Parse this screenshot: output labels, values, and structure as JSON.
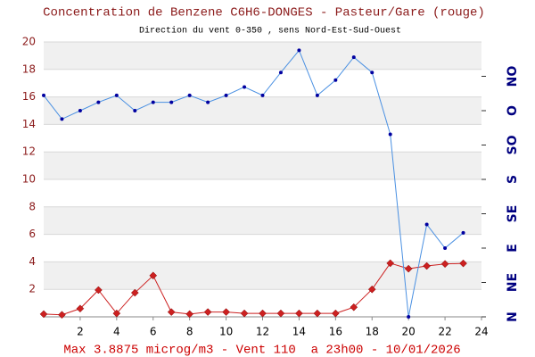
{
  "chart_data": {
    "type": "line",
    "title": "Concentration de Benzene C6H6-DONGES - Pasteur/Gare (rouge)",
    "subtitle": "Direction du vent 0-350 , sens Nord-Est-Sud-Ouest",
    "footer": "Max 3.8875 microg/m3 - Vent 110  a 23h00 - 10/01/2026",
    "x": [
      0,
      1,
      2,
      3,
      4,
      5,
      6,
      7,
      8,
      9,
      10,
      11,
      12,
      13,
      14,
      15,
      16,
      17,
      18,
      19,
      20,
      21,
      22,
      23
    ],
    "xlim": [
      0,
      24
    ],
    "xticks": [
      2,
      4,
      6,
      8,
      10,
      12,
      14,
      16,
      18,
      20,
      22,
      24
    ],
    "ylim": [
      0,
      20
    ],
    "yticks": [
      2,
      4,
      6,
      8,
      10,
      12,
      14,
      16,
      18,
      20
    ],
    "y2lim": [
      0,
      360
    ],
    "y2ticks": [
      {
        "value": 0,
        "label": "N"
      },
      {
        "value": 45,
        "label": "NE"
      },
      {
        "value": 90,
        "label": "E"
      },
      {
        "value": 135,
        "label": "SE"
      },
      {
        "value": 180,
        "label": "S"
      },
      {
        "value": 225,
        "label": "SO"
      },
      {
        "value": 270,
        "label": "O"
      },
      {
        "value": 315,
        "label": "NO"
      }
    ],
    "grid": true,
    "bands": true,
    "series": [
      {
        "name": "Benzene",
        "color": "#cc2020",
        "marker": "diamond",
        "values": [
          0.2,
          0.15,
          0.6,
          1.95,
          0.25,
          1.75,
          3.0,
          0.35,
          0.2,
          0.35,
          0.35,
          0.25,
          0.25,
          0.25,
          0.25,
          0.25,
          0.25,
          0.7,
          2.0,
          3.9,
          3.5,
          3.7,
          3.85,
          3.8875
        ]
      },
      {
        "name": "Vent",
        "color": "#4a90e2",
        "marker": "dot",
        "axis": "y2",
        "values": [
          290,
          259,
          270,
          281,
          290,
          270,
          281,
          281,
          290,
          281,
          290,
          301,
          290,
          320,
          349,
          290,
          310,
          340,
          320,
          239,
          0,
          121,
          90,
          110
        ]
      }
    ]
  }
}
